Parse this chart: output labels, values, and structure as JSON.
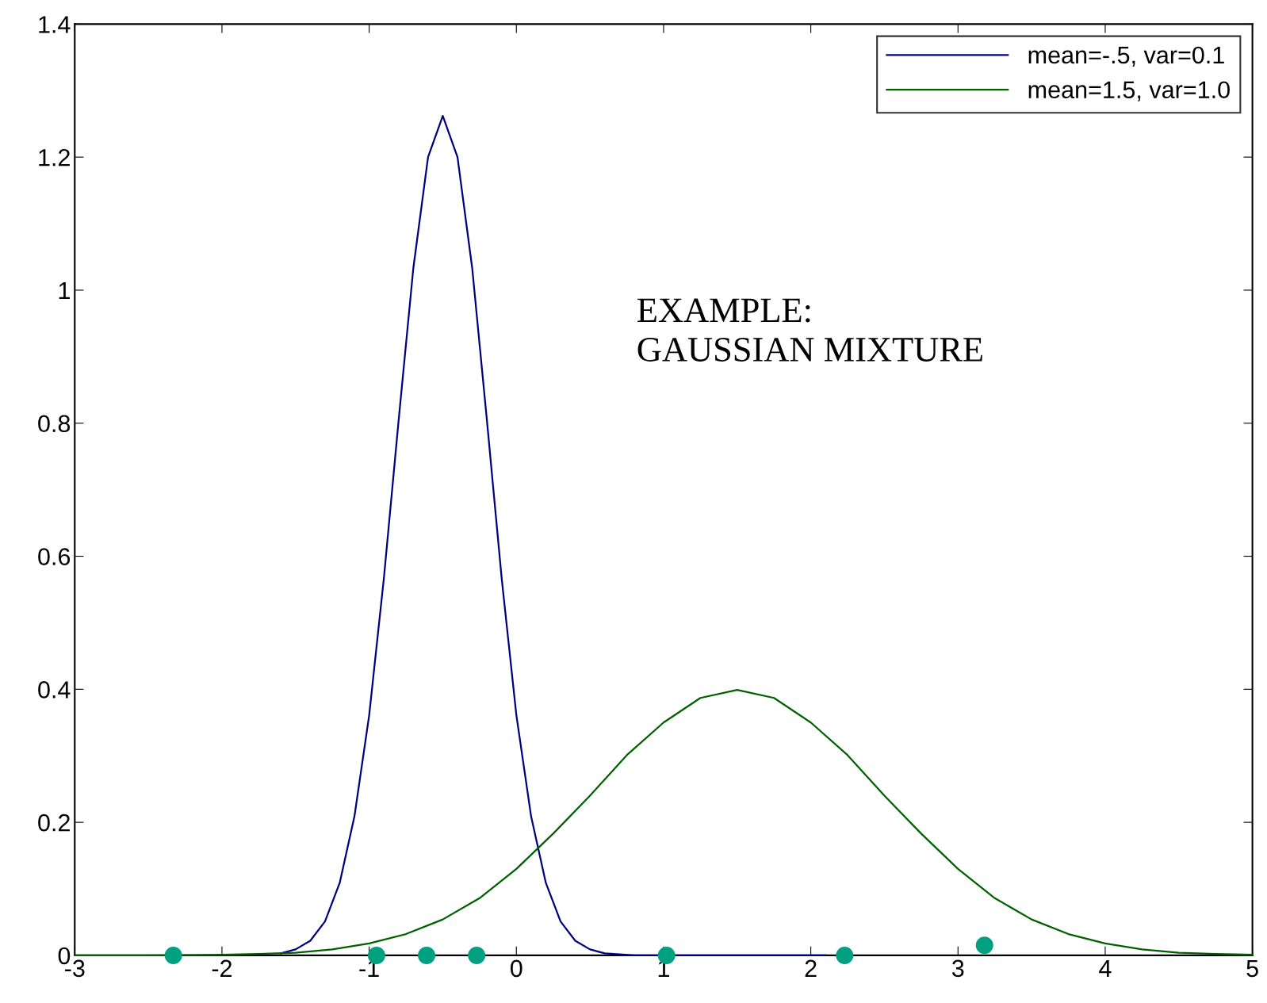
{
  "chart_data": {
    "type": "line",
    "annotations": [
      "EXAMPLE:\nGAUSSIAN MIXTURE"
    ],
    "xlim": [
      -3,
      5
    ],
    "ylim": [
      0,
      1.4
    ],
    "xticks": [
      -3,
      -2,
      -1,
      0,
      1,
      2,
      3,
      4,
      5
    ],
    "yticks": [
      0,
      0.2,
      0.4,
      0.6,
      0.8,
      1,
      1.2,
      1.4
    ],
    "grid": false,
    "legend": "top right",
    "marker": "none",
    "line_style": "solid",
    "series": [
      {
        "name": "mean=-.5, var=0.1",
        "color": "#00007f",
        "x": [
          -1.6,
          -1.5,
          -1.4,
          -1.3,
          -1.2,
          -1.1,
          -1.0,
          -0.9,
          -0.8,
          -0.7,
          -0.6,
          -0.5,
          -0.4,
          -0.3,
          -0.2,
          -0.1,
          0,
          0.1,
          0.2,
          0.3,
          0.4,
          0.5,
          0.6,
          0.8,
          2.1
        ],
        "values": [
          0.003,
          0.009,
          0.022,
          0.051,
          0.109,
          0.209,
          0.361,
          0.567,
          0.804,
          1.033,
          1.2,
          1.262,
          1.2,
          1.033,
          0.804,
          0.567,
          0.361,
          0.209,
          0.109,
          0.051,
          0.022,
          0.009,
          0.003,
          0,
          0
        ]
      },
      {
        "name": "mean=1.5, var=1.0",
        "color": "#006000",
        "x": [
          -3,
          -2.5,
          -2,
          -1.75,
          -1.5,
          -1.25,
          -1,
          -0.75,
          -0.5,
          -0.25,
          0,
          0.25,
          0.5,
          0.75,
          1,
          1.25,
          1.5,
          1.75,
          2,
          2.25,
          2.5,
          2.75,
          3,
          3.25,
          3.5,
          3.75,
          4,
          4.25,
          4.5,
          4.75,
          5
        ],
        "values": [
          0,
          0,
          0.001,
          0.002,
          0.004,
          0.009,
          0.018,
          0.032,
          0.054,
          0.086,
          0.13,
          0.183,
          0.24,
          0.301,
          0.35,
          0.387,
          0.399,
          0.387,
          0.35,
          0.301,
          0.24,
          0.183,
          0.13,
          0.086,
          0.054,
          0.032,
          0.018,
          0.009,
          0.004,
          0.002,
          0.001
        ]
      },
      {
        "type": "scatter",
        "marker": "circle",
        "color": "#00a080",
        "x": [
          -2.33,
          -0.95,
          -0.61,
          -0.27,
          1.02,
          2.23,
          3.18
        ],
        "values": [
          0,
          0,
          0,
          0,
          0,
          0,
          0.015
        ]
      }
    ]
  }
}
